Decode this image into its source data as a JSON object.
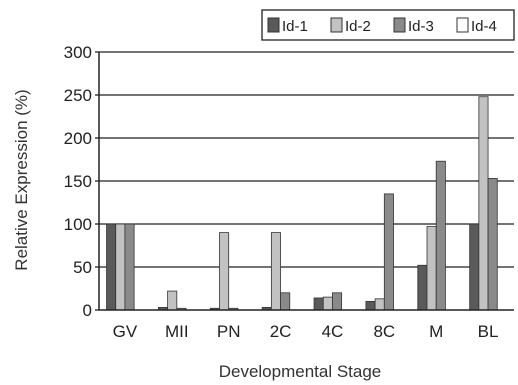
{
  "chart_data": {
    "type": "bar",
    "title": "",
    "xlabel": "Developmental Stage",
    "ylabel": "Relative Expression (%)",
    "ylim": [
      0,
      300
    ],
    "yticks": [
      0,
      50,
      100,
      150,
      200,
      250,
      300
    ],
    "grid": true,
    "legend_position": "top-right",
    "categories": [
      "GV",
      "MII",
      "PN",
      "2C",
      "4C",
      "8C",
      "M",
      "BL"
    ],
    "series": [
      {
        "name": "Id-1",
        "color": "#5a5a5a",
        "values": [
          100,
          3,
          2,
          3,
          14,
          10,
          52,
          100
        ]
      },
      {
        "name": "Id-2",
        "color": "#c2c2c2",
        "values": [
          100,
          22,
          90,
          90,
          15,
          13,
          97,
          248
        ]
      },
      {
        "name": "Id-3",
        "color": "#8a8a8a",
        "values": [
          100,
          2,
          2,
          20,
          20,
          135,
          173,
          153
        ]
      },
      {
        "name": "Id-4",
        "color": "#ffffff",
        "values": [
          0,
          0,
          0,
          0,
          0,
          0,
          0,
          0
        ]
      }
    ]
  }
}
